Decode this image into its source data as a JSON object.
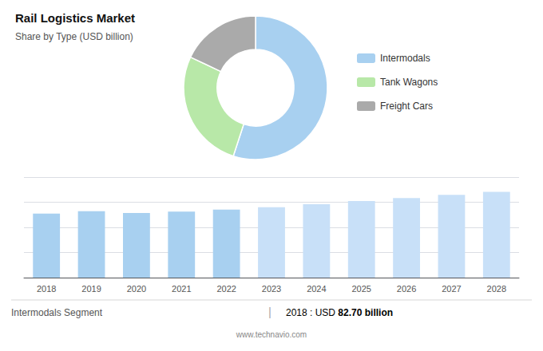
{
  "chart_data": [
    {
      "type": "pie",
      "title": "Rail Logistics Market",
      "subtitle": "Share by Type (USD billion)",
      "categories": [
        "Intermodals",
        "Tank Wagons",
        "Freight Cars"
      ],
      "values": [
        55,
        27,
        18
      ],
      "colors": [
        "#a8d0f0",
        "#b8e8a8",
        "#aaaaaa"
      ],
      "legend": "right"
    },
    {
      "type": "bar",
      "categories": [
        "2018",
        "2019",
        "2020",
        "2021",
        "2022",
        "2023",
        "2024",
        "2025",
        "2026",
        "2027",
        "2028"
      ],
      "values": [
        82.7,
        86.0,
        83.5,
        85.5,
        88.0,
        91.0,
        95.0,
        99.0,
        103.0,
        107.0,
        111.0
      ],
      "colors": [
        "#a8d0f0",
        "#a8d0f0",
        "#a8d0f0",
        "#a8d0f0",
        "#a8d0f0",
        "#c8e0f8",
        "#c8e0f8",
        "#c8e0f8",
        "#c8e0f8",
        "#c8e0f8",
        "#c8e0f8"
      ],
      "ylim": [
        0,
        130
      ],
      "yticks": [
        0,
        32.5,
        65,
        97.5,
        130
      ],
      "grid": true,
      "tick_labels": "x",
      "annotations": [
        "Intermodals Segment",
        "|",
        "2018 : USD ",
        "82.70 billion",
        "www.technavio.com"
      ]
    }
  ]
}
